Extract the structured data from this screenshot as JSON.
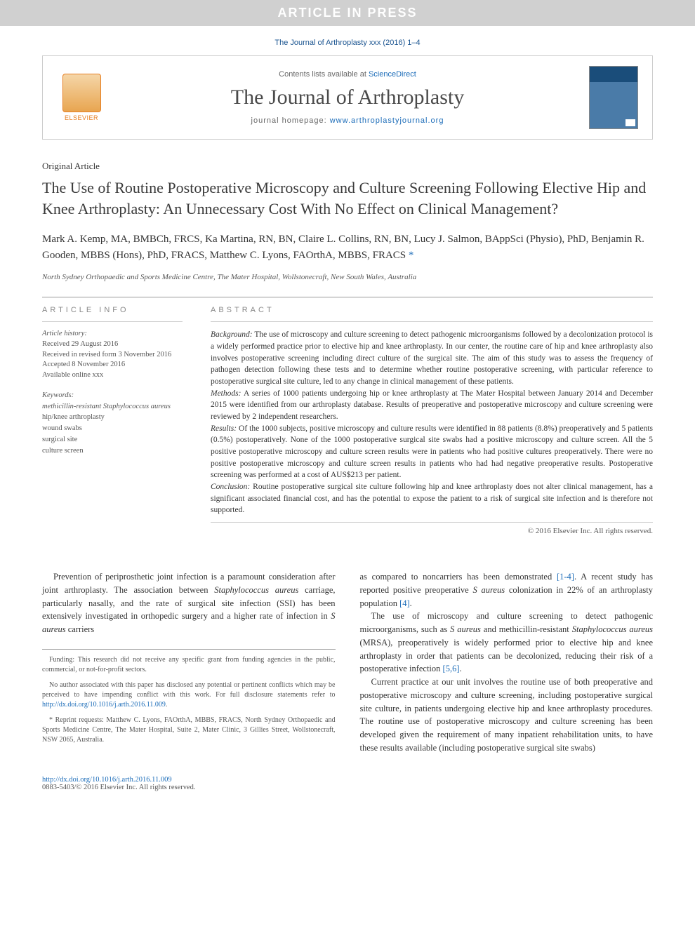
{
  "banner": "ARTICLE IN PRESS",
  "citation": "The Journal of Arthroplasty xxx (2016) 1–4",
  "header": {
    "contents_prefix": "Contents lists available at ",
    "contents_link": "ScienceDirect",
    "journal_title": "The Journal of Arthroplasty",
    "homepage_prefix": "journal homepage: ",
    "homepage_link": "www.arthroplastyjournal.org",
    "publisher": "ELSEVIER"
  },
  "article": {
    "type": "Original Article",
    "title": "The Use of Routine Postoperative Microscopy and Culture Screening Following Elective Hip and Knee Arthroplasty: An Unnecessary Cost With No Effect on Clinical Management?",
    "authors": "Mark A. Kemp, MA, BMBCh, FRCS, Ka Martina, RN, BN, Claire L. Collins, RN, BN, Lucy J. Salmon, BAppSci (Physio), PhD, Benjamin R. Gooden, MBBS (Hons), PhD, FRACS, Matthew C. Lyons, FAOrthA, MBBS, FRACS",
    "affiliation": "North Sydney Orthopaedic and Sports Medicine Centre, The Mater Hospital, Wollstonecraft, New South Wales, Australia"
  },
  "info": {
    "heading": "ARTICLE INFO",
    "history_label": "Article history:",
    "received": "Received 29 August 2016",
    "revised": "Received in revised form 3 November 2016",
    "accepted": "Accepted 8 November 2016",
    "online": "Available online xxx",
    "keywords_label": "Keywords:",
    "keywords": [
      "methicillin-resistant Staphylococcus aureus",
      "hip/knee arthroplasty",
      "wound swabs",
      "surgical site",
      "culture screen"
    ]
  },
  "abstract": {
    "heading": "ABSTRACT",
    "background_label": "Background:",
    "background": " The use of microscopy and culture screening to detect pathogenic microorganisms followed by a decolonization protocol is a widely performed practice prior to elective hip and knee arthroplasty. In our center, the routine care of hip and knee arthroplasty also involves postoperative screening including direct culture of the surgical site. The aim of this study was to assess the frequency of pathogen detection following these tests and to determine whether routine postoperative screening, with particular reference to postoperative surgical site culture, led to any change in clinical management of these patients.",
    "methods_label": "Methods:",
    "methods": " A series of 1000 patients undergoing hip or knee arthroplasty at The Mater Hospital between January 2014 and December 2015 were identified from our arthroplasty database. Results of preoperative and postoperative microscopy and culture screening were reviewed by 2 independent researchers.",
    "results_label": "Results:",
    "results": " Of the 1000 subjects, positive microscopy and culture results were identified in 88 patients (8.8%) preoperatively and 5 patients (0.5%) postoperatively. None of the 1000 postoperative surgical site swabs had a positive microscopy and culture screen. All the 5 positive postoperative microscopy and culture screen results were in patients who had positive cultures preoperatively. There were no positive postoperative microscopy and culture screen results in patients who had had negative preoperative results. Postoperative screening was performed at a cost of AUS$213 per patient.",
    "conclusion_label": "Conclusion:",
    "conclusion": " Routine postoperative surgical site culture following hip and knee arthroplasty does not alter clinical management, has a significant associated financial cost, and has the potential to expose the patient to a risk of surgical site infection and is therefore not supported.",
    "copyright": "© 2016 Elsevier Inc. All rights reserved."
  },
  "body": {
    "col1_p1_a": "Prevention of periprosthetic joint infection is a paramount consideration after joint arthroplasty. The association between ",
    "col1_p1_ital": "Staphylococcus aureus",
    "col1_p1_b": " carriage, particularly nasally, and the rate of surgical site infection (SSI) has been extensively investigated in orthopedic surgery and a higher rate of infection in ",
    "col1_p1_ital2": "S aureus",
    "col1_p1_c": " carriers",
    "col2_p1_a": "as compared to noncarriers has been demonstrated ",
    "col2_p1_ref1": "[1-4]",
    "col2_p1_b": ". A recent study has reported positive preoperative ",
    "col2_p1_ital": "S aureus",
    "col2_p1_c": " colonization in 22% of an arthroplasty population ",
    "col2_p1_ref2": "[4]",
    "col2_p1_d": ".",
    "col2_p2_a": "The use of microscopy and culture screening to detect pathogenic microorganisms, such as ",
    "col2_p2_ital1": "S aureus",
    "col2_p2_b": " and methicillin-resistant ",
    "col2_p2_ital2": "Staphylococcus aureus",
    "col2_p2_c": " (MRSA), preoperatively is widely performed prior to elective hip and knee arthroplasty in order that patients can be decolonized, reducing their risk of a postoperative infection ",
    "col2_p2_ref": "[5,6]",
    "col2_p2_d": ".",
    "col2_p3": "Current practice at our unit involves the routine use of both preoperative and postoperative microscopy and culture screening, including postoperative surgical site culture, in patients undergoing elective hip and knee arthroplasty procedures. The routine use of postoperative microscopy and culture screening has been developed given the requirement of many inpatient rehabilitation units, to have these results available (including postoperative surgical site swabs)"
  },
  "footnotes": {
    "funding": "Funding: This research did not receive any specific grant from funding agencies in the public, commercial, or not-for-profit sectors.",
    "coi_a": "No author associated with this paper has disclosed any potential or pertinent conflicts which may be perceived to have impending conflict with this work. For full disclosure statements refer to ",
    "coi_link": "http://dx.doi.org/10.1016/j.arth.2016.11.009",
    "coi_b": ".",
    "reprint": "* Reprint requests: Matthew C. Lyons, FAOrthA, MBBS, FRACS, North Sydney Orthopaedic and Sports Medicine Centre, The Mater Hospital, Suite 2, Mater Clinic, 3 Gillies Street, Wollstonecraft, NSW 2065, Australia."
  },
  "footer": {
    "doi": "http://dx.doi.org/10.1016/j.arth.2016.11.009",
    "issn": "0883-5403/© 2016 Elsevier Inc. All rights reserved."
  },
  "colors": {
    "banner_bg": "#d0d0d0",
    "link": "#1a6bb8",
    "citation": "#1a5490",
    "elsevier": "#e67e22",
    "cover_top": "#1a4d7a"
  }
}
